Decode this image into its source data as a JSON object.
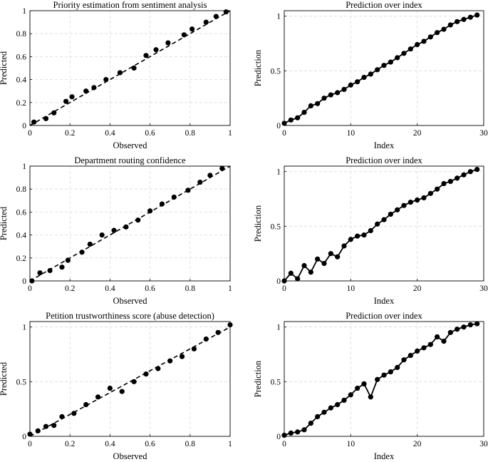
{
  "chart_data": [
    {
      "type": "scatter",
      "title": "Priority estimation from sentiment analysis",
      "xlabel": "Observed",
      "ylabel": "Predicted",
      "xlim": [
        0,
        1
      ],
      "ylim": [
        0,
        1
      ],
      "xticks": [
        0,
        0.2,
        0.4,
        0.6,
        0.8,
        1
      ],
      "xtick_labels": [
        "0",
        "0.2",
        "0.4",
        "0.6",
        "0.8",
        "1"
      ],
      "yticks": [
        0,
        0.2,
        0.4,
        0.6,
        0.8,
        1
      ],
      "ytick_labels": [
        "0",
        "0.2",
        "0.4",
        "0.6",
        "0.8",
        "1"
      ],
      "grid": true,
      "reference_line": [
        [
          0,
          0
        ],
        [
          1,
          1
        ]
      ],
      "x": [
        0.02,
        0.08,
        0.12,
        0.18,
        0.21,
        0.28,
        0.32,
        0.38,
        0.45,
        0.52,
        0.58,
        0.63,
        0.69,
        0.77,
        0.81,
        0.88,
        0.93,
        0.98
      ],
      "y": [
        0.03,
        0.06,
        0.11,
        0.21,
        0.25,
        0.3,
        0.33,
        0.4,
        0.46,
        0.5,
        0.61,
        0.66,
        0.72,
        0.79,
        0.84,
        0.9,
        0.95,
        0.99
      ]
    },
    {
      "type": "line",
      "title": "Prediction over index",
      "xlabel": "Index",
      "ylabel": "Prediction",
      "xlim": [
        0,
        30
      ],
      "ylim": [
        0,
        1.05
      ],
      "xticks": [
        0,
        10,
        20,
        30
      ],
      "xtick_labels": [
        "0",
        "10",
        "20",
        "30"
      ],
      "yticks": [
        0,
        0.5,
        1
      ],
      "ytick_labels": [
        "0",
        "0.5",
        "1"
      ],
      "grid": true,
      "x": [
        0,
        1,
        2,
        3,
        4,
        5,
        6,
        7,
        8,
        9,
        10,
        11,
        12,
        13,
        14,
        15,
        16,
        17,
        18,
        19,
        20,
        21,
        22,
        23,
        24,
        25,
        26,
        27,
        28,
        29
      ],
      "y": [
        0.02,
        0.05,
        0.07,
        0.12,
        0.18,
        0.2,
        0.25,
        0.28,
        0.3,
        0.33,
        0.37,
        0.4,
        0.44,
        0.47,
        0.51,
        0.55,
        0.58,
        0.62,
        0.66,
        0.7,
        0.74,
        0.77,
        0.81,
        0.85,
        0.88,
        0.92,
        0.95,
        0.97,
        0.99,
        1.01
      ]
    },
    {
      "type": "scatter",
      "title": "Department routing confidence",
      "xlabel": "Observed",
      "ylabel": "Predicted",
      "xlim": [
        0,
        1
      ],
      "ylim": [
        0,
        1
      ],
      "xticks": [
        0,
        0.2,
        0.4,
        0.6,
        0.8,
        1
      ],
      "xtick_labels": [
        "0",
        "0.2",
        "0.4",
        "0.6",
        "0.8",
        "1"
      ],
      "yticks": [
        0,
        0.2,
        0.4,
        0.6,
        0.8,
        1
      ],
      "ytick_labels": [
        "0",
        "0.2",
        "0.4",
        "0.6",
        "0.8",
        "1"
      ],
      "grid": true,
      "reference_line": [
        [
          0,
          0
        ],
        [
          1,
          1
        ]
      ],
      "x": [
        0.01,
        0.05,
        0.1,
        0.16,
        0.19,
        0.26,
        0.3,
        0.36,
        0.42,
        0.48,
        0.54,
        0.6,
        0.66,
        0.72,
        0.79,
        0.85,
        0.9,
        0.96
      ],
      "y": [
        0.0,
        0.07,
        0.09,
        0.12,
        0.18,
        0.25,
        0.32,
        0.4,
        0.44,
        0.47,
        0.53,
        0.61,
        0.67,
        0.73,
        0.79,
        0.86,
        0.92,
        0.98
      ]
    },
    {
      "type": "line",
      "title": "Prediction over index",
      "xlabel": "Index",
      "ylabel": "Prediction",
      "xlim": [
        0,
        30
      ],
      "ylim": [
        0,
        1.05
      ],
      "xticks": [
        0,
        10,
        20,
        30
      ],
      "xtick_labels": [
        "0",
        "10",
        "20",
        "30"
      ],
      "yticks": [
        0,
        0.5,
        1
      ],
      "ytick_labels": [
        "0",
        "0.5",
        "1"
      ],
      "grid": true,
      "x": [
        0,
        1,
        2,
        3,
        4,
        5,
        6,
        7,
        8,
        9,
        10,
        11,
        12,
        13,
        14,
        15,
        16,
        17,
        18,
        19,
        20,
        21,
        22,
        23,
        24,
        25,
        26,
        27,
        28,
        29
      ],
      "y": [
        0.0,
        0.07,
        0.02,
        0.14,
        0.08,
        0.2,
        0.16,
        0.25,
        0.22,
        0.32,
        0.38,
        0.41,
        0.42,
        0.46,
        0.52,
        0.56,
        0.61,
        0.65,
        0.69,
        0.72,
        0.74,
        0.76,
        0.8,
        0.84,
        0.89,
        0.91,
        0.94,
        0.97,
        1.0,
        1.02
      ]
    },
    {
      "type": "scatter",
      "title": "Petition trustworthiness score (abuse detection)",
      "xlabel": "Observed",
      "ylabel": "Predicted",
      "xlim": [
        0,
        1
      ],
      "ylim": [
        0,
        1.05
      ],
      "xticks": [
        0,
        0.2,
        0.4,
        0.6,
        0.8,
        1
      ],
      "xtick_labels": [
        "0",
        "0.2",
        "0.4",
        "0.6",
        "0.8",
        "1"
      ],
      "yticks": [
        0,
        0.5,
        1
      ],
      "ytick_labels": [
        "0",
        "0.5",
        "1"
      ],
      "grid": true,
      "reference_line": [
        [
          0,
          0
        ],
        [
          1,
          1
        ]
      ],
      "x": [
        0.0,
        0.04,
        0.08,
        0.12,
        0.16,
        0.22,
        0.28,
        0.34,
        0.4,
        0.46,
        0.52,
        0.58,
        0.64,
        0.7,
        0.76,
        0.82,
        0.88,
        0.94,
        1.0
      ],
      "y": [
        0.02,
        0.05,
        0.09,
        0.1,
        0.18,
        0.21,
        0.29,
        0.36,
        0.44,
        0.41,
        0.5,
        0.57,
        0.62,
        0.69,
        0.73,
        0.8,
        0.89,
        0.95,
        1.02
      ]
    },
    {
      "type": "line",
      "title": "Prediction over index",
      "xlabel": "Index",
      "ylabel": "Prediction",
      "xlim": [
        0,
        30
      ],
      "ylim": [
        0,
        1.05
      ],
      "xticks": [
        0,
        10,
        20,
        30
      ],
      "xtick_labels": [
        "0",
        "10",
        "20",
        "30"
      ],
      "yticks": [
        0,
        0.5,
        1
      ],
      "ytick_labels": [
        "0",
        "0.5",
        "1"
      ],
      "grid": true,
      "x": [
        0,
        1,
        2,
        3,
        4,
        5,
        6,
        7,
        8,
        9,
        10,
        11,
        12,
        13,
        14,
        15,
        16,
        17,
        18,
        19,
        20,
        21,
        22,
        23,
        24,
        25,
        26,
        27,
        28,
        29
      ],
      "y": [
        0.01,
        0.03,
        0.04,
        0.06,
        0.12,
        0.18,
        0.22,
        0.26,
        0.29,
        0.33,
        0.38,
        0.44,
        0.48,
        0.36,
        0.52,
        0.56,
        0.59,
        0.63,
        0.7,
        0.74,
        0.78,
        0.81,
        0.84,
        0.91,
        0.87,
        0.95,
        0.98,
        1.0,
        1.02,
        1.03
      ]
    }
  ]
}
